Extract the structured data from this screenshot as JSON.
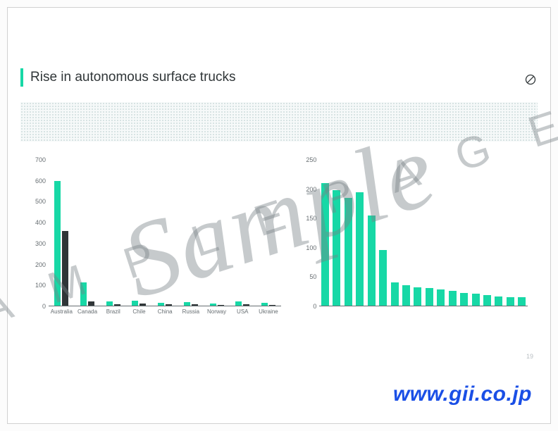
{
  "title": "Rise in autonomous surface trucks",
  "page_number": "19",
  "footer_url": "www.gii.co.jp",
  "watermark": {
    "small_chars": "SAMPLE PAGES",
    "big_word": "Sample"
  },
  "colors": {
    "accent": "#17d8a6",
    "series2": "#303638",
    "text": "#303638",
    "axis": "#676e72",
    "footer": "#1a4fe6"
  },
  "left_chart": {
    "type": "bar",
    "ymax": 700,
    "yticks": [
      0,
      100,
      200,
      300,
      400,
      500,
      600,
      700
    ],
    "categories": [
      "Australia",
      "Canada",
      "Brazil",
      "Chile",
      "China",
      "Russia",
      "Norway",
      "USA",
      "Ukraine"
    ],
    "series": [
      {
        "name": "s1",
        "color": "#17d8a6",
        "values": [
          600,
          110,
          20,
          25,
          15,
          18,
          10,
          20,
          12
        ]
      },
      {
        "name": "s2",
        "color": "#303638",
        "values": [
          360,
          20,
          8,
          10,
          6,
          8,
          5,
          8,
          5
        ]
      }
    ],
    "axis_fontsize": 9
  },
  "right_chart": {
    "type": "bar",
    "ymax": 250,
    "yticks": [
      0,
      50,
      100,
      150,
      200,
      250
    ],
    "bar_color": "#17d8a6",
    "values": [
      210,
      198,
      185,
      195,
      155,
      95,
      40,
      35,
      32,
      30,
      28,
      25,
      22,
      20,
      18,
      16,
      15,
      14
    ],
    "axis_fontsize": 9
  }
}
